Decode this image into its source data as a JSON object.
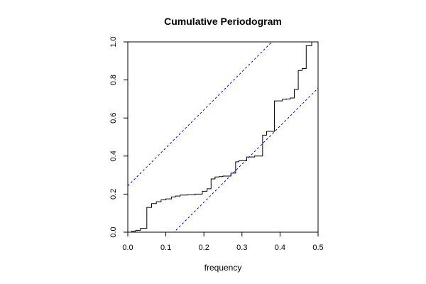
{
  "chart_data": {
    "type": "line",
    "title": "Cumulative Periodogram",
    "xlabel": "frequency",
    "ylabel": "",
    "xlim": [
      0,
      0.5
    ],
    "ylim": [
      0,
      1
    ],
    "x_ticks": [
      {
        "value": 0.0,
        "label": "0.0"
      },
      {
        "value": 0.1,
        "label": "0.1"
      },
      {
        "value": 0.2,
        "label": "0.2"
      },
      {
        "value": 0.3,
        "label": "0.3"
      },
      {
        "value": 0.4,
        "label": "0.4"
      },
      {
        "value": 0.5,
        "label": "0.5"
      }
    ],
    "y_ticks": [
      {
        "value": 0.0,
        "label": "0.0"
      },
      {
        "value": 0.2,
        "label": "0.2"
      },
      {
        "value": 0.4,
        "label": "0.4"
      },
      {
        "value": 0.6,
        "label": "0.6"
      },
      {
        "value": 0.8,
        "label": "0.8"
      },
      {
        "value": 1.0,
        "label": "1.0"
      }
    ],
    "grid": false,
    "series": [
      {
        "style": "step",
        "color": "#000000",
        "x": [
          0,
          0.0104,
          0.0208,
          0.0333,
          0.05,
          0.0625,
          0.075,
          0.0875,
          0.1,
          0.1146,
          0.125,
          0.1375,
          0.1563,
          0.1771,
          0.1958,
          0.2083,
          0.2188,
          0.2292,
          0.2396,
          0.25,
          0.2708,
          0.2833,
          0.2917,
          0.3125,
          0.3333,
          0.3542,
          0.3646,
          0.3854,
          0.4063,
          0.4167,
          0.4271,
          0.4375,
          0.4479,
          0.4583,
          0.4688,
          0.4833,
          0.5
        ],
        "y": [
          0,
          0.005,
          0.01,
          0.02,
          0.13,
          0.15,
          0.16,
          0.17,
          0.175,
          0.185,
          0.19,
          0.195,
          0.197,
          0.2,
          0.215,
          0.228,
          0.28,
          0.29,
          0.292,
          0.295,
          0.31,
          0.37,
          0.375,
          0.395,
          0.4,
          0.51,
          0.53,
          0.69,
          0.698,
          0.7,
          0.705,
          0.75,
          0.85,
          0.86,
          0.98,
          1.0,
          1.0
        ]
      },
      {
        "style": "dashed",
        "color": "#0000ff",
        "x": [
          0,
          0.5
        ],
        "y": [
          0.243,
          1.243
        ]
      },
      {
        "style": "dashed",
        "color": "#0000ff",
        "x": [
          0,
          0.5
        ],
        "y": [
          -0.243,
          0.757
        ]
      }
    ]
  }
}
